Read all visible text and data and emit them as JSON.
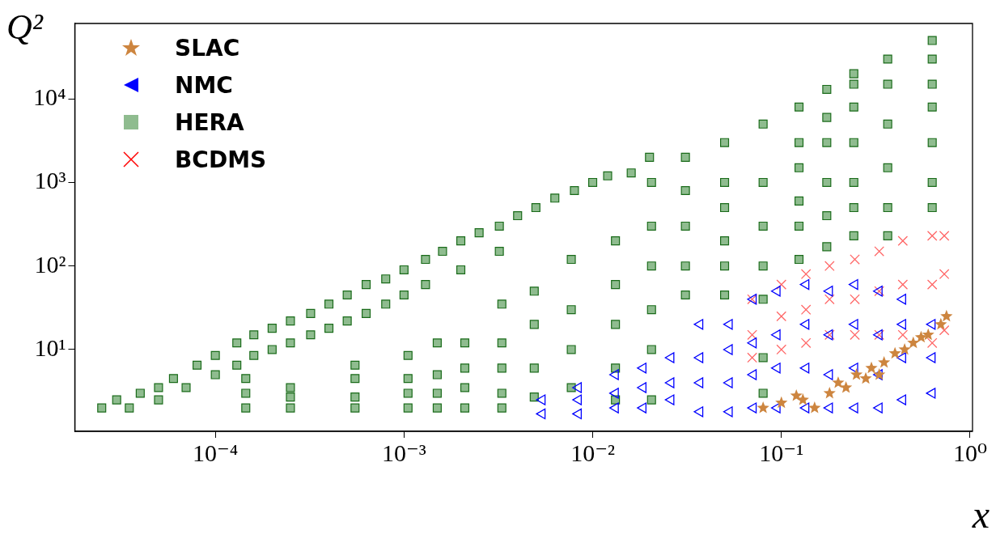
{
  "chart_data": {
    "type": "scatter",
    "xlabel": "x",
    "ylabel": "Q²",
    "log": "xy",
    "grid": false,
    "legend": "top left",
    "xlim": [
      1.8e-05,
      1.03
    ],
    "ylim": [
      1.05,
      80000
    ],
    "xticks": [
      {
        "value": 0.0001,
        "label": "10⁻⁴"
      },
      {
        "value": 0.001,
        "label": "10⁻³"
      },
      {
        "value": 0.01,
        "label": "10⁻²"
      },
      {
        "value": 0.1,
        "label": "10⁻¹"
      },
      {
        "value": 1,
        "label": "10⁰"
      }
    ],
    "yticks": [
      {
        "value": 10,
        "label": "10¹"
      },
      {
        "value": 100,
        "label": "10²"
      },
      {
        "value": 1000,
        "label": "10³"
      },
      {
        "value": 10000,
        "label": "10⁴"
      }
    ],
    "series": [
      {
        "name": "SLAC",
        "color": "#cd853f",
        "marker": "star",
        "x": [
          0.08,
          0.1,
          0.12,
          0.13,
          0.15,
          0.18,
          0.2,
          0.22,
          0.25,
          0.28,
          0.3,
          0.33,
          0.35,
          0.4,
          0.45,
          0.5,
          0.55,
          0.6,
          0.7,
          0.75
        ],
        "values": [
          2,
          2.3,
          2.8,
          2.5,
          2,
          3,
          4,
          3.5,
          5,
          4.5,
          6,
          5,
          7,
          9,
          10,
          12,
          14,
          15,
          20,
          25
        ]
      },
      {
        "name": "NMC",
        "color": "#0000ff",
        "marker": "triangle",
        "x": [
          0.0054,
          0.0054,
          0.0084,
          0.0084,
          0.0084,
          0.0132,
          0.0132,
          0.0132,
          0.0185,
          0.0185,
          0.0185,
          0.026,
          0.026,
          0.026,
          0.037,
          0.037,
          0.037,
          0.037,
          0.053,
          0.053,
          0.053,
          0.053,
          0.071,
          0.071,
          0.071,
          0.071,
          0.095,
          0.095,
          0.095,
          0.095,
          0.135,
          0.135,
          0.135,
          0.135,
          0.18,
          0.18,
          0.18,
          0.18,
          0.245,
          0.245,
          0.245,
          0.245,
          0.33,
          0.33,
          0.33,
          0.33,
          0.44,
          0.44,
          0.44,
          0.44,
          0.63,
          0.63,
          0.63
        ],
        "values": [
          1.7,
          2.5,
          1.7,
          2.5,
          3.5,
          2,
          3,
          5,
          2,
          3.5,
          6,
          2.5,
          4,
          8,
          1.8,
          4,
          8,
          20,
          1.8,
          4,
          10,
          20,
          2,
          5,
          12,
          40,
          2,
          6,
          15,
          50,
          2,
          6,
          20,
          60,
          2,
          5,
          15,
          50,
          2,
          6,
          20,
          60,
          2,
          5,
          15,
          50,
          2.5,
          8,
          20,
          40,
          3,
          8,
          20
        ]
      },
      {
        "name": "HERA",
        "color": "#8fbc8f",
        "marker": "square",
        "x": [
          2.5e-05,
          3e-05,
          3.5e-05,
          4e-05,
          5e-05,
          5e-05,
          6e-05,
          7e-05,
          8e-05,
          0.0001,
          0.0001,
          0.00013,
          0.00013,
          0.00016,
          0.00016,
          0.0002,
          0.0002,
          0.00025,
          0.00025,
          0.00032,
          0.00032,
          0.0004,
          0.0004,
          0.0005,
          0.0005,
          0.00063,
          0.00063,
          0.0008,
          0.0008,
          0.001,
          0.001,
          0.0013,
          0.0013,
          0.0016,
          0.002,
          0.002,
          0.0025,
          0.0032,
          0.0032,
          0.004,
          0.005,
          0.0063,
          0.008,
          0.01,
          0.012,
          0.016,
          0.02,
          0.000145,
          0.000145,
          0.000145,
          0.00025,
          0.00025,
          0.00025,
          0.00055,
          0.00055,
          0.00055,
          0.00055,
          0.00105,
          0.00105,
          0.00105,
          0.00105,
          0.0015,
          0.0015,
          0.0015,
          0.0015,
          0.0021,
          0.0021,
          0.0021,
          0.0021,
          0.0033,
          0.0033,
          0.0033,
          0.0033,
          0.0033,
          0.0049,
          0.0049,
          0.0049,
          0.0049,
          0.0077,
          0.0077,
          0.0077,
          0.0077,
          0.0132,
          0.0132,
          0.0132,
          0.0132,
          0.0132,
          0.0205,
          0.0205,
          0.0205,
          0.0205,
          0.0205,
          0.0205,
          0.031,
          0.031,
          0.031,
          0.031,
          0.031,
          0.05,
          0.05,
          0.05,
          0.05,
          0.05,
          0.05,
          0.08,
          0.08,
          0.08,
          0.08,
          0.08,
          0.08,
          0.08,
          0.124,
          0.124,
          0.124,
          0.124,
          0.124,
          0.124,
          0.174,
          0.174,
          0.174,
          0.174,
          0.174,
          0.174,
          0.242,
          0.242,
          0.242,
          0.242,
          0.242,
          0.242,
          0.242,
          0.366,
          0.366,
          0.366,
          0.366,
          0.366,
          0.366,
          0.63,
          0.63,
          0.63,
          0.63,
          0.63,
          0.63,
          0.63
        ],
        "values": [
          2,
          2.5,
          2,
          3,
          2.5,
          3.5,
          4.5,
          3.5,
          6.5,
          5,
          8.5,
          6.5,
          12,
          8.5,
          15,
          10,
          18,
          12,
          22,
          15,
          27,
          18,
          35,
          22,
          45,
          27,
          60,
          35,
          70,
          45,
          90,
          60,
          120,
          150,
          90,
          200,
          250,
          150,
          300,
          400,
          500,
          650,
          800,
          1000,
          1200,
          1300,
          2000,
          2,
          3,
          4.5,
          2,
          2.7,
          3.5,
          2,
          2.7,
          4.5,
          6.5,
          2,
          3,
          4.5,
          8.5,
          2,
          3,
          5,
          12,
          2,
          3.5,
          6,
          12,
          2,
          3,
          6,
          12,
          35,
          2.7,
          6,
          20,
          50,
          3.5,
          10,
          30,
          120,
          2.5,
          6,
          20,
          60,
          200,
          2.5,
          10,
          30,
          100,
          300,
          1000,
          45,
          100,
          300,
          800,
          2000,
          45,
          100,
          200,
          500,
          1000,
          3000,
          3,
          8,
          40,
          100,
          300,
          1000,
          5000,
          120,
          300,
          600,
          1500,
          3000,
          8000,
          170,
          400,
          1000,
          3000,
          6000,
          13000,
          230,
          500,
          1000,
          3000,
          8000,
          15000,
          20000,
          230,
          500,
          1500,
          5000,
          15000,
          30000,
          500,
          1000,
          3000,
          8000,
          15000,
          30000,
          50000
        ]
      },
      {
        "name": "BCDMS",
        "color": "#ff0000",
        "marker": "cross",
        "x": [
          0.07,
          0.07,
          0.07,
          0.1,
          0.1,
          0.1,
          0.135,
          0.135,
          0.135,
          0.18,
          0.18,
          0.18,
          0.245,
          0.245,
          0.245,
          0.33,
          0.33,
          0.33,
          0.44,
          0.44,
          0.44,
          0.63,
          0.63,
          0.63,
          0.73,
          0.73,
          0.73
        ],
        "values": [
          8,
          15,
          40,
          10,
          25,
          60,
          12,
          30,
          80,
          15,
          40,
          100,
          15,
          40,
          120,
          15,
          50,
          150,
          15,
          60,
          200,
          12,
          60,
          230,
          17,
          80,
          230
        ]
      }
    ]
  }
}
